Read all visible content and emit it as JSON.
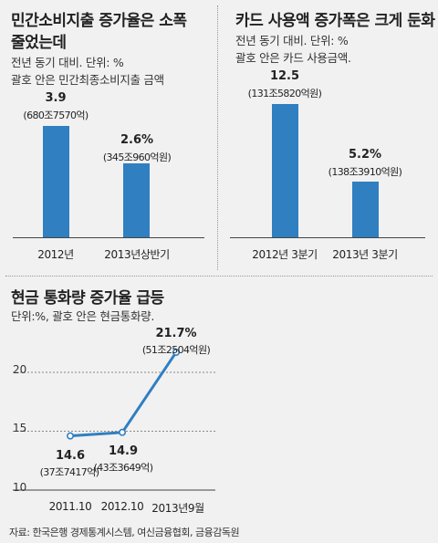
{
  "chart_data": [
    {
      "type": "bar",
      "title": "민간소비지출 증가율은 소폭 줄었는데",
      "title_lines": [
        "민간소비지출 증가율은 소폭",
        "줄었는데"
      ],
      "subtitle_lines": [
        "전년 동기 대비. 단위: %",
        "괄호 안은 민간최종소비지출 금액"
      ],
      "categories": [
        "2012년",
        "2013년상반기"
      ],
      "values": [
        3.9,
        2.6
      ],
      "value_labels": [
        "3.9",
        "2.6%"
      ],
      "amount_labels": [
        "(680조7570억)",
        "(345조960억원)"
      ],
      "bar_color": "#2f7fc1"
    },
    {
      "type": "bar",
      "title": "카드 사용액 증가폭은 크게 둔화",
      "title_lines": [
        "카드 사용액 증가폭은 크게 둔화"
      ],
      "subtitle_lines": [
        "전년 동기 대비. 단위: %",
        "괄호 안은 카드 사용금액."
      ],
      "categories": [
        "2012년 3분기",
        "2013년 3분기"
      ],
      "values": [
        12.5,
        5.2
      ],
      "value_labels": [
        "12.5",
        "5.2%"
      ],
      "amount_labels": [
        "(131조5820억원)",
        "(138조3910억원)"
      ],
      "bar_color": "#2f7fc1"
    },
    {
      "type": "line",
      "title": "현금 통화량 증가율 급등",
      "subtitle": "단위:%, 괄호 안은 현금통화량.",
      "x": [
        "2011.10",
        "2012.10",
        "2013년9월"
      ],
      "values": [
        14.6,
        14.9,
        21.7
      ],
      "value_labels": [
        "14.6",
        "14.9",
        "21.7%"
      ],
      "amount_labels": [
        "(37조7417억)",
        "(43조3649억)",
        "(51조2504억원)"
      ],
      "ylim": [
        10,
        22
      ],
      "yticks": [
        "20",
        "15",
        "10"
      ],
      "grid": true,
      "line_color": "#2f7fc1"
    }
  ],
  "source": "자료: 한국은행 경제통계시스템, 여신금융협회, 금융감독원"
}
